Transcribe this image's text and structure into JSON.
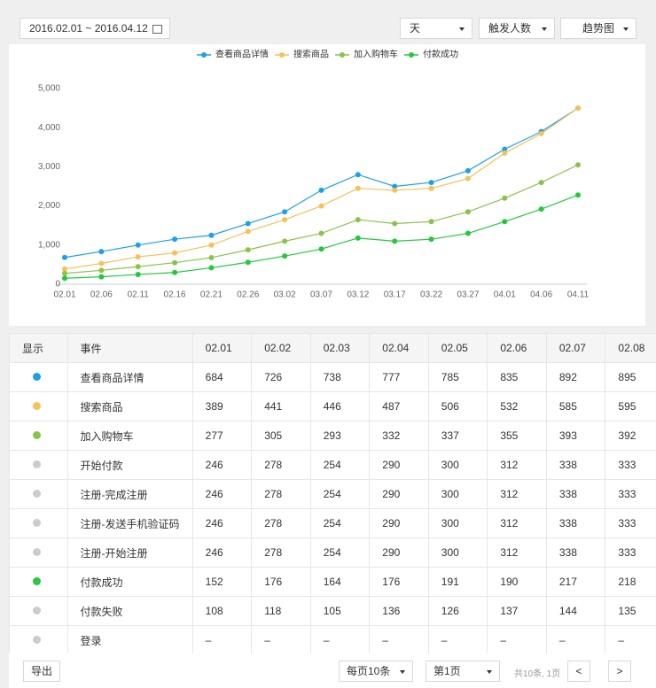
{
  "toolbar": {
    "date_range": "2016.02.01 ~ 2016.04.12",
    "granularity": "天",
    "metric": "触发人数",
    "view": "趋势图"
  },
  "chart_data": {
    "type": "line",
    "categories": [
      "02.01",
      "02.06",
      "02.11",
      "02.16",
      "02.21",
      "02.26",
      "03.02",
      "03.07",
      "03.12",
      "03.17",
      "03.22",
      "03.27",
      "04.01",
      "04.06",
      "04.11"
    ],
    "series": [
      {
        "name": "查看商品详情",
        "color": "#1ba1e6",
        "values": [
          684,
          835,
          1000,
          1150,
          1250,
          1550,
          1850,
          2400,
          2800,
          2500,
          2600,
          2900,
          3450,
          3900,
          4500
        ]
      },
      {
        "name": "搜索商品",
        "color": "#f5c15a",
        "values": [
          389,
          532,
          700,
          800,
          1000,
          1350,
          1650,
          2000,
          2450,
          2400,
          2450,
          2700,
          3350,
          3850,
          4500
        ]
      },
      {
        "name": "加入购物车",
        "color": "#8bc34a",
        "values": [
          277,
          355,
          450,
          550,
          680,
          880,
          1100,
          1300,
          1650,
          1550,
          1600,
          1850,
          2200,
          2600,
          3050
        ]
      },
      {
        "name": "付款成功",
        "color": "#22c93a",
        "values": [
          152,
          190,
          250,
          300,
          420,
          560,
          720,
          900,
          1180,
          1100,
          1150,
          1300,
          1600,
          1920,
          2280
        ]
      }
    ],
    "ylim": [
      0,
      5000
    ],
    "yticks": [
      0,
      {
        "value": 1000,
        "label": "1,000"
      },
      {
        "value": 2000,
        "label": "2,000"
      },
      {
        "value": 3000,
        "label": "3,000"
      },
      {
        "value": 4000,
        "label": "4,000"
      },
      {
        "value": 5000,
        "label": "5,000"
      }
    ],
    "grid": false,
    "legend": "top"
  },
  "table": {
    "columns": [
      "显示",
      "事件",
      "02.01",
      "02.02",
      "02.03",
      "02.04",
      "02.05",
      "02.06",
      "02.07",
      "02.08"
    ],
    "rows": [
      {
        "color": "#1ba1e6",
        "event": "查看商品详情",
        "values": [
          684,
          726,
          738,
          777,
          785,
          835,
          892,
          895
        ]
      },
      {
        "color": "#f5c15a",
        "event": "搜索商品",
        "values": [
          389,
          441,
          446,
          487,
          506,
          532,
          585,
          595
        ]
      },
      {
        "color": "#8bc34a",
        "event": "加入购物车",
        "values": [
          277,
          305,
          293,
          332,
          337,
          355,
          393,
          392
        ]
      },
      {
        "color": "#cccccc",
        "event": "开始付款",
        "values": [
          246,
          278,
          254,
          290,
          300,
          312,
          338,
          333
        ]
      },
      {
        "color": "#cccccc",
        "event": "注册-完成注册",
        "values": [
          246,
          278,
          254,
          290,
          300,
          312,
          338,
          333
        ]
      },
      {
        "color": "#cccccc",
        "event": "注册-发送手机验证码",
        "values": [
          246,
          278,
          254,
          290,
          300,
          312,
          338,
          333
        ]
      },
      {
        "color": "#cccccc",
        "event": "注册-开始注册",
        "values": [
          246,
          278,
          254,
          290,
          300,
          312,
          338,
          333
        ]
      },
      {
        "color": "#22c93a",
        "event": "付款成功",
        "values": [
          152,
          176,
          164,
          176,
          191,
          190,
          217,
          218
        ]
      },
      {
        "color": "#cccccc",
        "event": "付款失败",
        "values": [
          108,
          118,
          105,
          136,
          126,
          137,
          144,
          135
        ]
      },
      {
        "color": "#cccccc",
        "event": "登录",
        "values": [
          "–",
          "–",
          "–",
          "–",
          "–",
          "–",
          "–",
          "–"
        ]
      }
    ]
  },
  "footer": {
    "export": "导出",
    "page_size": "每页10条",
    "page": "第1页",
    "summary": "共10条, 1页",
    "prev": "<",
    "next": ">"
  }
}
